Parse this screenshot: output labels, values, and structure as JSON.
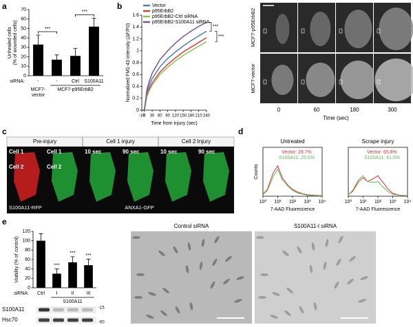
{
  "panel_labels": [
    "a",
    "b",
    "c",
    "d",
    "e"
  ],
  "chart_data": [
    {
      "type": "bar",
      "ylabel": [
        "Unhealed cells",
        "(% of wounded cells)"
      ],
      "row_label": "siRNA:",
      "categories": [
        "-",
        "-",
        "Ctrl",
        "S100A11"
      ],
      "groups": [
        [
          "MCF7-",
          "vector"
        ],
        [
          "MCF7-p95ErbB2"
        ]
      ],
      "values": [
        33,
        17,
        21,
        52
      ],
      "errors": [
        10,
        5,
        8,
        9
      ],
      "color": "#000000",
      "ylim": [
        0,
        70
      ],
      "yticks": [
        0,
        10,
        20,
        30,
        40,
        50,
        60,
        70
      ],
      "significance": [
        "***",
        "***"
      ]
    },
    {
      "type": "line",
      "ylabel": "Normalized FM1-43 intensity (ΔF/F0)",
      "xlabel": "Time from injury (sec)",
      "x": [
        -10,
        0,
        10,
        20,
        30,
        60,
        90,
        120,
        150,
        180,
        210,
        240
      ],
      "series": [
        {
          "name": "Vector",
          "color": "#4a7fc1",
          "values": [
            0,
            0,
            0.3,
            0.43,
            0.53,
            0.73,
            0.87,
            0.98,
            1.08,
            1.17,
            1.25,
            1.33
          ]
        },
        {
          "name": "p95ErbB2",
          "color": "#d9403a",
          "values": [
            0,
            0,
            0.25,
            0.37,
            0.46,
            0.64,
            0.77,
            0.88,
            0.98,
            1.06,
            1.14,
            1.22
          ]
        },
        {
          "name": "p95ErbB2-Ctrl siRNA",
          "color": "#8cc152",
          "values": [
            0,
            0,
            0.23,
            0.34,
            0.42,
            0.6,
            0.72,
            0.83,
            0.92,
            1.0,
            1.08,
            1.15
          ]
        },
        {
          "name": "p95ErbB2-S100A11 siRNA",
          "color": "#7b4fa0",
          "values": [
            0,
            0,
            0.35,
            0.5,
            0.62,
            0.85,
            1.0,
            1.13,
            1.24,
            1.33,
            1.41,
            1.48
          ]
        }
      ],
      "xlim": [
        -10,
        240
      ],
      "xticks": [
        -10,
        0,
        30,
        60,
        90,
        120,
        150,
        180,
        210,
        240
      ],
      "ylim": [
        0,
        1.6
      ],
      "yticks": [
        0,
        0.2,
        0.4,
        0.6,
        0.8,
        1,
        1.2,
        1.4,
        1.6
      ],
      "significance": [
        "***",
        "***"
      ]
    },
    {
      "type": "line",
      "title": "Untreated",
      "ylabel": "Counts",
      "xlabel": "7-AAD Fluorescence",
      "xscale": "log",
      "x": [
        1,
        2,
        5,
        10,
        20,
        50,
        100,
        200,
        500,
        1000,
        3000,
        10000
      ],
      "series": [
        {
          "name": "Vector: 29.7%",
          "color": "#e0302a",
          "values": [
            4,
            14,
            48,
            62,
            38,
            22,
            14,
            9,
            5,
            3,
            2,
            1
          ]
        },
        {
          "name": "S100A11: 25.0%",
          "color": "#5cb85c",
          "values": [
            3,
            12,
            40,
            55,
            34,
            20,
            12,
            7,
            4,
            2,
            1,
            1
          ]
        }
      ],
      "xlim": [
        1,
        10000
      ],
      "xticks": [
        {
          "value": 1,
          "label": "10⁰"
        },
        {
          "value": 10,
          "label": "10¹"
        },
        {
          "value": 100,
          "label": "10²"
        },
        {
          "value": 1000,
          "label": "10³"
        },
        {
          "value": 10000,
          "label": "10⁴"
        }
      ],
      "ylim": [
        0,
        100
      ]
    },
    {
      "type": "line",
      "title": "Scrape injury",
      "xlabel": "7-AAD Fluorescence",
      "xscale": "log",
      "x": [
        1,
        2,
        5,
        10,
        20,
        50,
        100,
        200,
        500,
        1000,
        3000,
        10000
      ],
      "series": [
        {
          "name": "Vector: 65.8%",
          "color": "#e0302a",
          "values": [
            3,
            10,
            30,
            38,
            30,
            36,
            42,
            30,
            14,
            6,
            2,
            1
          ]
        },
        {
          "name": "S100A11: 41.5%",
          "color": "#5cb85c",
          "values": [
            3,
            12,
            34,
            42,
            30,
            28,
            30,
            20,
            9,
            4,
            2,
            1
          ]
        }
      ],
      "xlim": [
        1,
        10000
      ],
      "xticks": [
        {
          "value": 1,
          "label": "10⁰"
        },
        {
          "value": 10,
          "label": "10¹"
        },
        {
          "value": 100,
          "label": "10²"
        },
        {
          "value": 1000,
          "label": "10³"
        },
        {
          "value": 10000,
          "label": "10⁴"
        }
      ],
      "ylim": [
        0,
        100
      ]
    },
    {
      "type": "bar",
      "ylabel": [
        "Viability (% of control)"
      ],
      "row_label": "siRNA:",
      "categories": [
        "Ctrl",
        "I",
        "II",
        "III"
      ],
      "groups": [
        [
          "S100A11"
        ]
      ],
      "values": [
        100,
        30,
        54,
        48
      ],
      "errors": [
        15,
        10,
        12,
        13
      ],
      "color": "#000000",
      "ylim": [
        0,
        120
      ],
      "yticks": [
        0,
        20,
        40,
        60,
        80,
        100,
        120
      ],
      "significance": [
        "***",
        "***",
        "***"
      ]
    }
  ],
  "micrographs": {
    "b": {
      "rows": [
        "MCF7-p95ErbB2",
        "MCF7-vector"
      ],
      "times": [
        "0",
        "60",
        "180",
        "300"
      ],
      "xlabel": "Time (sec)"
    },
    "c": {
      "headers": [
        "Pre-injury",
        "Cell 1 injury",
        "Cell 2 Injury"
      ],
      "tile_labels": [
        [
          "Cell 1",
          "Cell 2"
        ],
        [
          "Cell 1",
          "Cell 2"
        ],
        [
          "10 sec"
        ],
        [
          "90 sec"
        ],
        [
          "10 sec"
        ],
        [
          "90 sec"
        ]
      ],
      "channels": [
        "S100A11-RFP",
        "ANXA1-GFP"
      ]
    },
    "e": {
      "titles": [
        "Control siRNA",
        "S100A11-I siRNA"
      ],
      "blot": {
        "proteins": [
          "S100A11",
          "Hsc70"
        ],
        "markers": [
          "-15",
          "-60"
        ]
      }
    }
  }
}
